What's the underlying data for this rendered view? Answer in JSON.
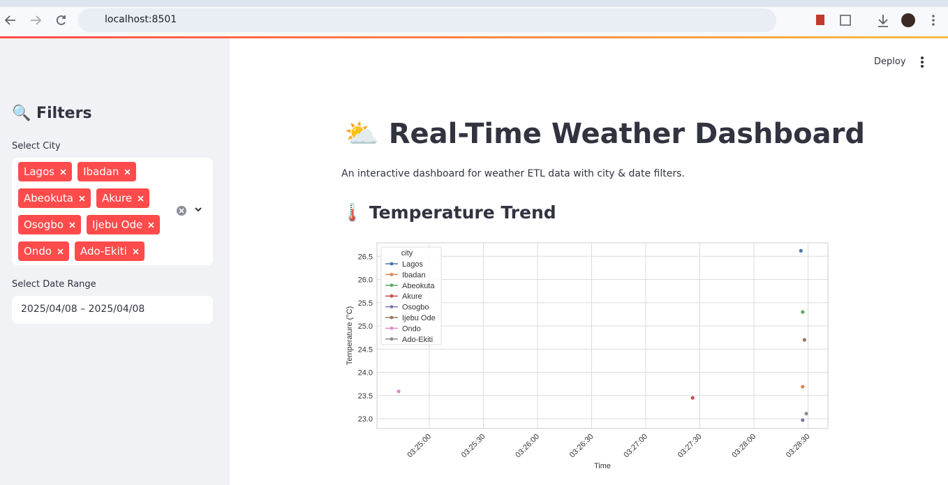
{
  "browser": {
    "url": "localhost:8501"
  },
  "sidebar": {
    "heading": "🔍 Filters",
    "city_label": "Select City",
    "cities": [
      "Lagos",
      "Ibadan",
      "Abeokuta",
      "Akure",
      "Osogbo",
      "Ijebu Ode",
      "Ondo",
      "Ado-Ekiti"
    ],
    "date_label": "Select Date Range",
    "date_value": "2025/04/08 – 2025/04/08"
  },
  "header": {
    "deploy": "Deploy"
  },
  "main": {
    "title": "⛅ Real-Time Weather Dashboard",
    "description": "An interactive dashboard for weather ETL data with city & date filters.",
    "section": "🌡️ Temperature Trend"
  },
  "chart_data": {
    "type": "scatter",
    "x_label": "Time",
    "y_label": "Temperature (°C)",
    "legend_title": "city",
    "legend": "upper left",
    "grid": true,
    "xlim": [
      "03:24:31",
      "03:28:41"
    ],
    "xticks": [
      "03:25:00",
      "03:25:30",
      "03:26:00",
      "03:26:30",
      "03:27:00",
      "03:27:30",
      "03:28:00",
      "03:28:30"
    ],
    "ylim": [
      22.79,
      26.79
    ],
    "yticks": [
      {
        "value": 23,
        "label": "23.0"
      },
      23.5,
      {
        "value": 24,
        "label": "24.0"
      },
      24.5,
      {
        "value": 25,
        "label": "25.0"
      },
      25.5,
      {
        "value": 26,
        "label": "26.0"
      },
      26.5
    ],
    "series": [
      {
        "name": "Lagos",
        "color": "#4c72b0",
        "x": [
          "03:28:26"
        ],
        "values": [
          26.62
        ]
      },
      {
        "name": "Ibadan",
        "color": "#dd8452",
        "x": [
          "03:28:27"
        ],
        "values": [
          23.69
        ]
      },
      {
        "name": "Abeokuta",
        "color": "#55a868",
        "x": [
          "03:28:27"
        ],
        "values": [
          25.3
        ]
      },
      {
        "name": "Akure",
        "color": "#c44e52",
        "x": [
          "03:27:26"
        ],
        "values": [
          23.45
        ]
      },
      {
        "name": "Osogbo",
        "color": "#8172b3",
        "x": [
          "03:28:27"
        ],
        "values": [
          22.97
        ]
      },
      {
        "name": "Ijebu Ode",
        "color": "#937860",
        "x": [
          "03:28:28"
        ],
        "values": [
          24.7
        ]
      },
      {
        "name": "Ondo",
        "color": "#da8bc3",
        "x": [
          "03:24:43"
        ],
        "values": [
          23.59
        ]
      },
      {
        "name": "Ado-Ekiti",
        "color": "#8c8c8c",
        "x": [
          "03:28:29"
        ],
        "values": [
          23.11
        ]
      }
    ]
  }
}
